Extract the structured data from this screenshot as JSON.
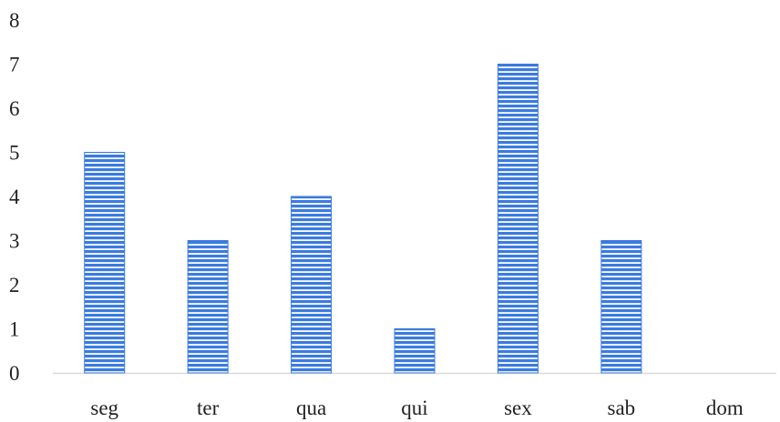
{
  "chart_data": {
    "type": "bar",
    "title": "",
    "xlabel": "",
    "ylabel": "",
    "categories": [
      "seg",
      "ter",
      "qua",
      "qui",
      "sex",
      "sab",
      "dom"
    ],
    "values": [
      5,
      3,
      4,
      1,
      7,
      3,
      0
    ],
    "ylim": [
      0,
      8
    ],
    "yticks": [
      "0",
      "1",
      "2",
      "3",
      "4",
      "5",
      "6",
      "7",
      "8"
    ],
    "grid": false,
    "legend": "none",
    "colors": {
      "bar_stripe": "#3a7be0",
      "bar_gap": "#ffffff",
      "axis": "#d9d9d9"
    }
  }
}
